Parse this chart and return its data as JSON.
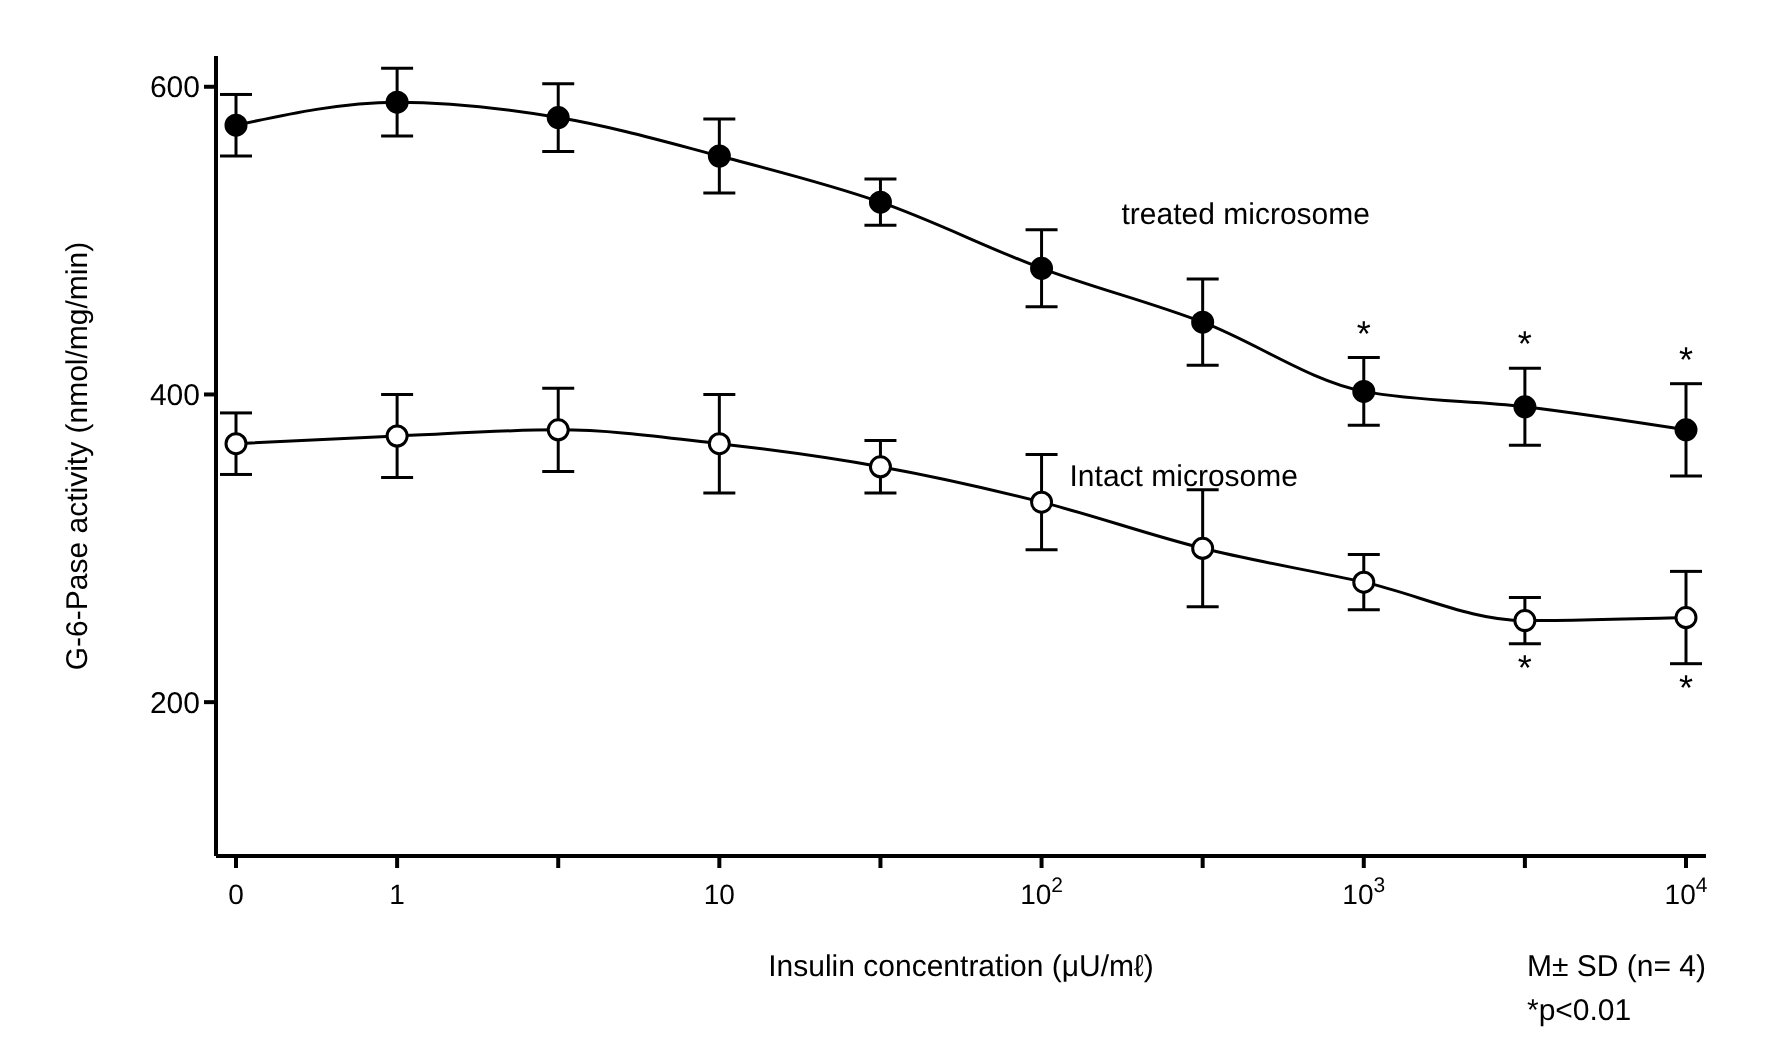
{
  "chart_data": {
    "type": "line",
    "xlabel": "Insulin concentration (μU/mℓ)",
    "ylabel": "G-6-Pase activity (nmol/mg/min)",
    "categories": [
      "0",
      "1",
      null,
      "10",
      null,
      "10$^{2}$",
      null,
      "10$^{3}$",
      null,
      "10$^{4}$"
    ],
    "series": [
      {
        "name": "treated microsome",
        "color": "#000000",
        "values": [
          575,
          590,
          580,
          555,
          525,
          482,
          447,
          402,
          392,
          377
        ],
        "errors": [
          20,
          22,
          22,
          24,
          15,
          25,
          28,
          22,
          25,
          30
        ],
        "value_labels": [
          null,
          null,
          null,
          null,
          null,
          null,
          null,
          "*",
          "*",
          "*"
        ]
      },
      {
        "name": "Intact microsome",
        "color": "#000000",
        "values": [
          368,
          373,
          377,
          368,
          353,
          330,
          300,
          278,
          253,
          255
        ],
        "errors": [
          20,
          27,
          27,
          32,
          17,
          31,
          38,
          18,
          15,
          30
        ],
        "value_labels": [
          null,
          null,
          null,
          null,
          null,
          null,
          null,
          null,
          "*",
          "*"
        ]
      }
    ],
    "ylim": [
      100,
      620
    ],
    "yticks": [
      200,
      400,
      600
    ],
    "marker": "circle",
    "line_style": "solid",
    "annotations": [
      "M± SD (n= 4)",
      "*p<0.01"
    ]
  }
}
